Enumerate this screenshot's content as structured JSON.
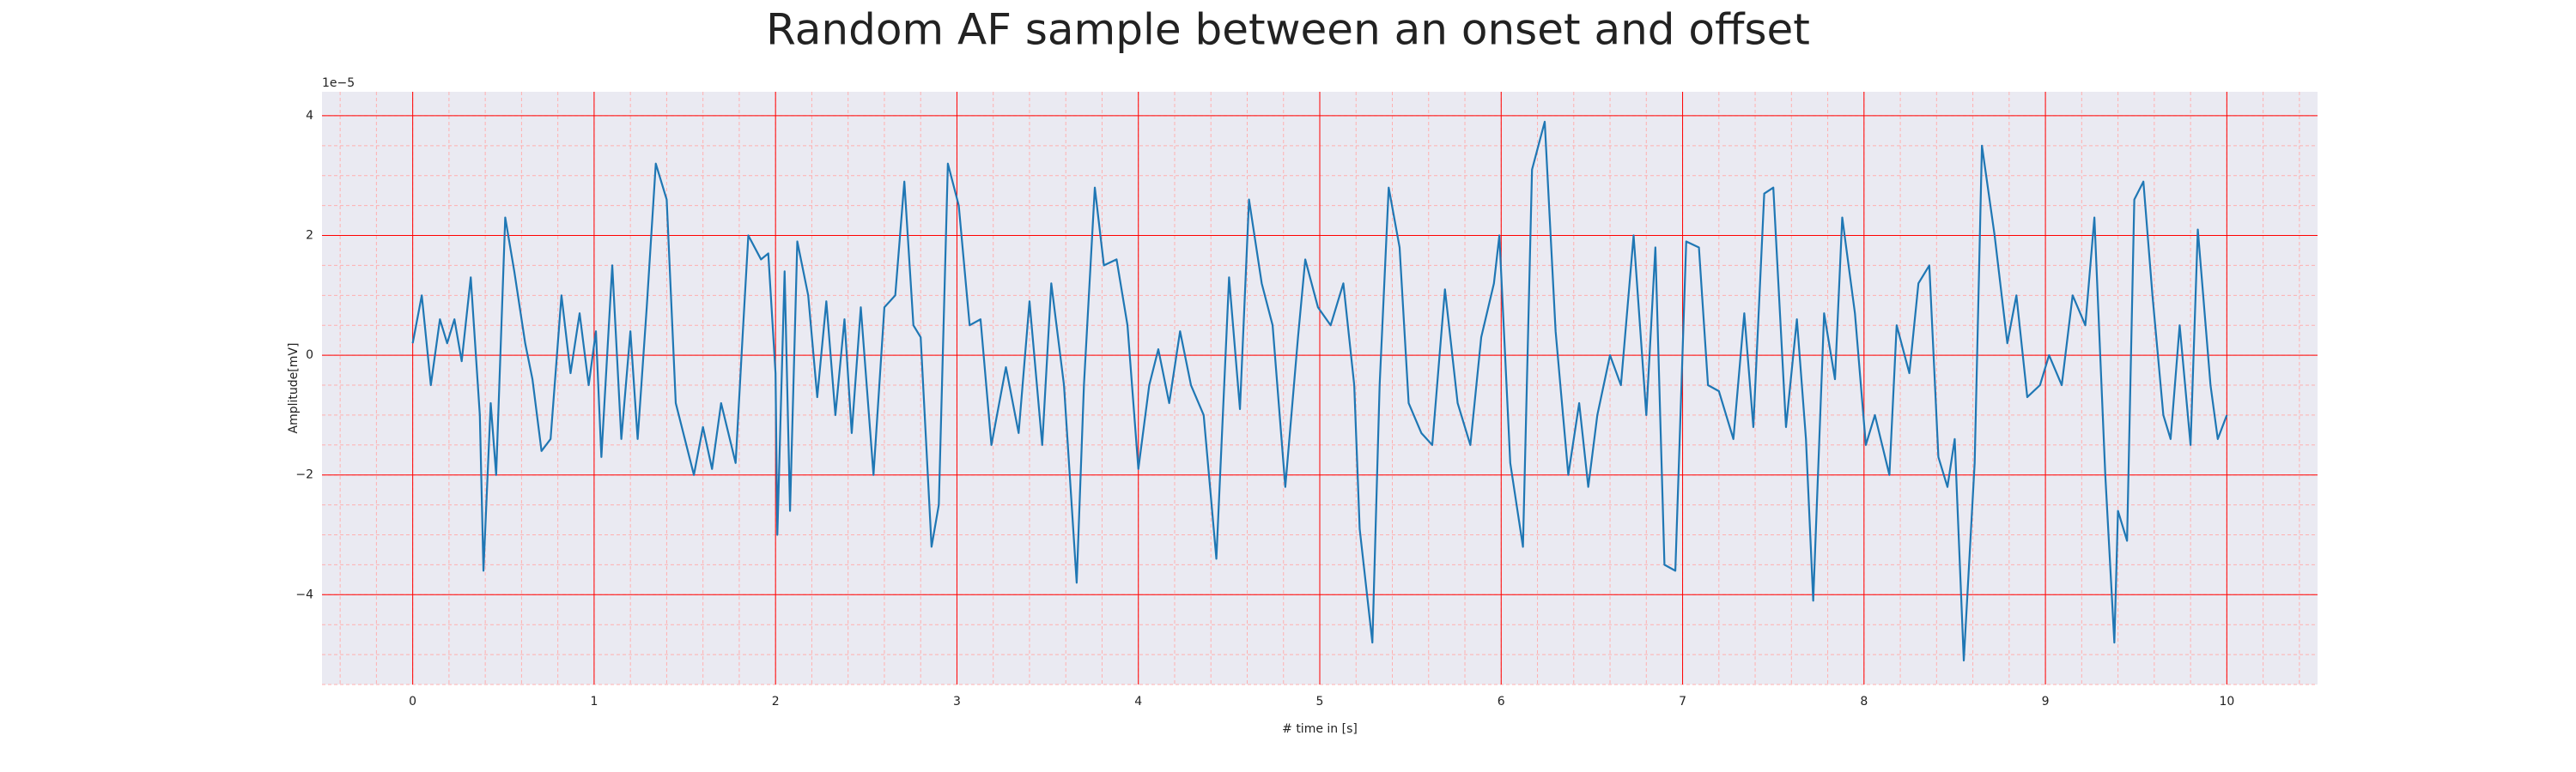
{
  "chart_data": {
    "type": "line",
    "title": "Random AF sample between an onset and offset",
    "xlabel": "# time in [s]",
    "ylabel": "Amplitude[mV]",
    "y_offset_label": "1e−5",
    "x": [
      0,
      0.05,
      0.1,
      0.15,
      0.19,
      0.23,
      0.27,
      0.32,
      0.37,
      0.39,
      0.43,
      0.46,
      0.51,
      0.56,
      0.62,
      0.66,
      0.71,
      0.76,
      0.82,
      0.87,
      0.92,
      0.97,
      1.01,
      1.04,
      1.1,
      1.15,
      1.2,
      1.24,
      1.29,
      1.34,
      1.4,
      1.45,
      1.5,
      1.55,
      1.6,
      1.65,
      1.7,
      1.78,
      1.82,
      1.85,
      1.92,
      1.96,
      2.0,
      2.01,
      2.05,
      2.08,
      2.12,
      2.18,
      2.23,
      2.28,
      2.33,
      2.38,
      2.42,
      2.47,
      2.54,
      2.6,
      2.66,
      2.71,
      2.76,
      2.8,
      2.86,
      2.9,
      2.95,
      3.01,
      3.07,
      3.13,
      3.19,
      3.27,
      3.34,
      3.4,
      3.47,
      3.52,
      3.59,
      3.66,
      3.7,
      3.76,
      3.81,
      3.88,
      3.94,
      4.0,
      4.06,
      4.11,
      4.17,
      4.23,
      4.29,
      4.36,
      4.43,
      4.5,
      4.56,
      4.61,
      4.68,
      4.74,
      4.81,
      4.88,
      4.92,
      4.99,
      5.06,
      5.13,
      5.19,
      5.22,
      5.29,
      5.33,
      5.38,
      5.44,
      5.49,
      5.56,
      5.62,
      5.69,
      5.76,
      5.83,
      5.89,
      5.96,
      5.99,
      6.05,
      6.12,
      6.17,
      6.24,
      6.3,
      6.37,
      6.43,
      6.48,
      6.53,
      6.6,
      6.66,
      6.73,
      6.8,
      6.85,
      6.9,
      6.96,
      7.02,
      7.09,
      7.14,
      7.2,
      7.28,
      7.34,
      7.39,
      7.45,
      7.5,
      7.57,
      7.63,
      7.68,
      7.72,
      7.78,
      7.84,
      7.88,
      7.95,
      8.01,
      8.06,
      8.14,
      8.18,
      8.25,
      8.3,
      8.36,
      8.41,
      8.46,
      8.5,
      8.55,
      8.61,
      8.65,
      8.72,
      8.79,
      8.84,
      8.9,
      8.97,
      9.02,
      9.09,
      9.15,
      9.22,
      9.27,
      9.33,
      9.38,
      9.4,
      9.45,
      9.49,
      9.54,
      9.59,
      9.65,
      9.69,
      9.74,
      9.8,
      9.84,
      9.91,
      9.95,
      10.0
    ],
    "series": [
      {
        "color": "#1f77b4",
        "values": [
          0.2,
          1.0,
          -0.5,
          0.6,
          0.2,
          0.6,
          -0.1,
          1.3,
          -1.0,
          -3.6,
          -0.8,
          -2.0,
          2.3,
          1.4,
          0.2,
          -0.4,
          -1.6,
          -1.4,
          1.0,
          -0.3,
          0.7,
          -0.5,
          0.4,
          -1.7,
          1.5,
          -1.4,
          0.4,
          -1.4,
          0.8,
          3.2,
          2.6,
          -0.8,
          -1.4,
          -2.0,
          -1.2,
          -1.9,
          -0.8,
          -1.8,
          0.4,
          2.0,
          1.6,
          1.7,
          -0.3,
          -3.0,
          1.4,
          -2.6,
          1.9,
          1.0,
          -0.7,
          0.9,
          -1.0,
          0.6,
          -1.3,
          0.8,
          -2.0,
          0.8,
          1.0,
          2.9,
          0.5,
          0.3,
          -3.2,
          -2.5,
          3.2,
          2.5,
          0.5,
          0.6,
          -1.5,
          -0.2,
          -1.3,
          0.9,
          -1.5,
          1.2,
          -0.5,
          -3.8,
          -0.5,
          2.8,
          1.5,
          1.6,
          0.5,
          -1.9,
          -0.5,
          0.1,
          -0.8,
          0.4,
          -0.5,
          -1.0,
          -3.4,
          1.3,
          -0.9,
          2.6,
          1.2,
          0.5,
          -2.2,
          0.3,
          1.6,
          0.8,
          0.5,
          1.2,
          -0.5,
          -2.9,
          -4.8,
          -0.5,
          2.8,
          1.8,
          -0.8,
          -1.3,
          -1.5,
          1.1,
          -0.8,
          -1.5,
          0.3,
          1.2,
          2.0,
          -1.8,
          -3.2,
          3.1,
          3.9,
          0.4,
          -2.0,
          -0.8,
          -2.2,
          -1.0,
          0.0,
          -0.5,
          2.0,
          -1.0,
          1.8,
          -3.5,
          -3.6,
          1.9,
          1.8,
          -0.5,
          -0.6,
          -1.4,
          0.7,
          -1.2,
          2.7,
          2.8,
          -1.2,
          0.6,
          -1.4,
          -4.1,
          0.7,
          -0.4,
          2.3,
          0.7,
          -1.5,
          -1.0,
          -2.0,
          0.5,
          -0.3,
          1.2,
          1.5,
          -1.7,
          -2.2,
          -1.4,
          -5.1,
          -1.8,
          3.5,
          2.0,
          0.2,
          1.0,
          -0.7,
          -0.5,
          0.0,
          -0.5,
          1.0,
          0.5,
          2.3,
          -2.0,
          -4.8,
          -2.6,
          -3.1,
          2.6,
          2.9,
          1.0,
          -1.0,
          -1.4,
          0.5,
          -1.5,
          2.1,
          -0.5,
          -1.4,
          -1.0
        ]
      }
    ],
    "xlim": [
      -0.5,
      10.5
    ],
    "ylim": [
      -5.5,
      4.4
    ],
    "xticks": [
      0,
      1,
      2,
      3,
      4,
      5,
      6,
      7,
      8,
      9,
      10
    ],
    "yticks": [
      {
        "value": -4,
        "label": "−4"
      },
      {
        "value": -2,
        "label": "−2"
      },
      0,
      2,
      4
    ],
    "grid": true,
    "minor_grid": true,
    "grid_color": "#ff0000",
    "minor_grid_color": "#ffb0b0",
    "background": "#eaeaf2"
  }
}
